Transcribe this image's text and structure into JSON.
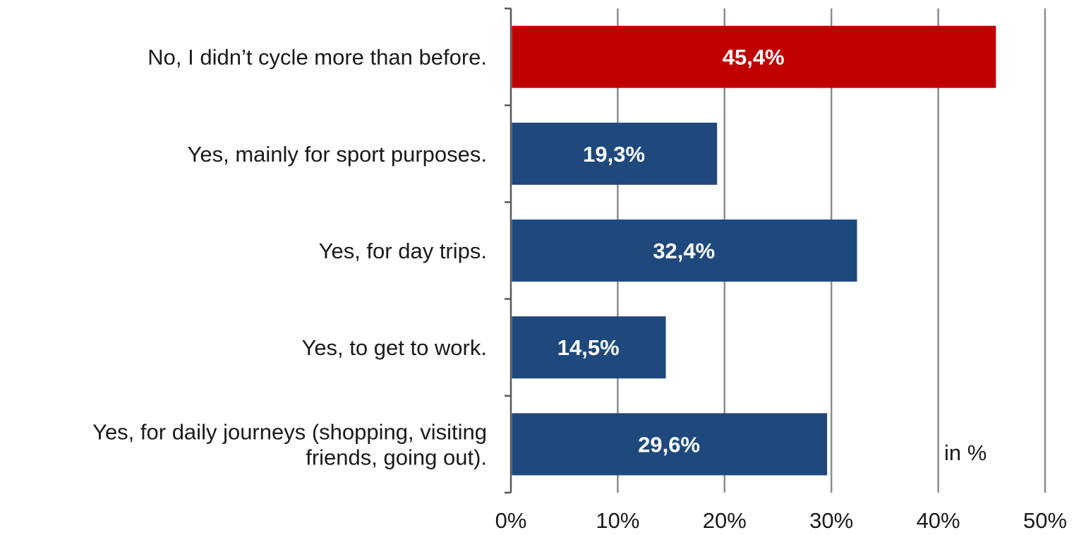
{
  "chart_data": {
    "type": "bar",
    "orientation": "horizontal",
    "categories": [
      [
        "No, I didn’t cycle more than before."
      ],
      [
        "Yes, mainly for sport purposes."
      ],
      [
        "Yes, for day trips."
      ],
      [
        "Yes, to get to work."
      ],
      [
        "Yes, for daily journeys (shopping, visiting",
        "friends, going out)."
      ]
    ],
    "values": [
      45.4,
      19.3,
      32.4,
      14.5,
      29.6
    ],
    "data_labels": [
      "45,4%",
      "19,3%",
      "32,4%",
      "14,5%",
      "29,6%"
    ],
    "bar_colors": [
      "#c00000",
      "#1f497d",
      "#1f497d",
      "#1f497d",
      "#1f497d"
    ],
    "x_ticks": [
      0,
      10,
      20,
      30,
      40,
      50
    ],
    "x_tick_labels": [
      "0%",
      "10%",
      "20%",
      "30%",
      "40%",
      "50%"
    ],
    "xlim": [
      0,
      50
    ],
    "grid": "vertical",
    "unit_note": "in %",
    "colors": {
      "highlight": "#c00000",
      "bar": "#1f497d",
      "grid": "#8c8c8c",
      "axis": "#595959",
      "text": "#1a1a1a",
      "label_text": "#ffffff"
    }
  }
}
